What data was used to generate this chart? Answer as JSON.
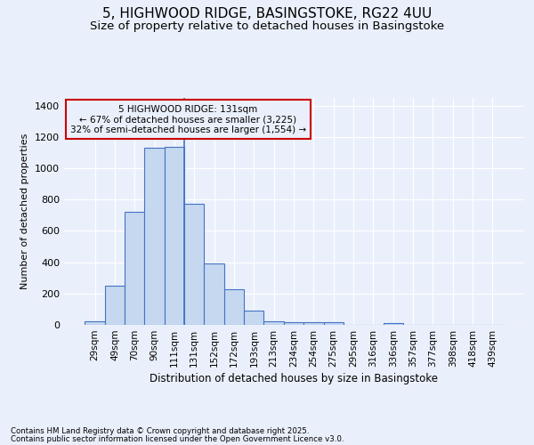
{
  "title1": "5, HIGHWOOD RIDGE, BASINGSTOKE, RG22 4UU",
  "title2": "Size of property relative to detached houses in Basingstoke",
  "xlabel": "Distribution of detached houses by size in Basingstoke",
  "ylabel": "Number of detached properties",
  "categories": [
    "29sqm",
    "49sqm",
    "70sqm",
    "90sqm",
    "111sqm",
    "131sqm",
    "152sqm",
    "172sqm",
    "193sqm",
    "213sqm",
    "234sqm",
    "254sqm",
    "275sqm",
    "295sqm",
    "316sqm",
    "336sqm",
    "357sqm",
    "377sqm",
    "398sqm",
    "418sqm",
    "439sqm"
  ],
  "values": [
    25,
    248,
    720,
    1130,
    1140,
    775,
    390,
    228,
    90,
    25,
    18,
    15,
    15,
    0,
    0,
    10,
    0,
    0,
    0,
    0,
    0
  ],
  "bar_color": "#c5d8f0",
  "bar_edge_color": "#4472c4",
  "annotation_text": "5 HIGHWOOD RIDGE: 131sqm\n← 67% of detached houses are smaller (3,225)\n32% of semi-detached houses are larger (1,554) →",
  "annotation_box_edge": "#cc0000",
  "footer1": "Contains HM Land Registry data © Crown copyright and database right 2025.",
  "footer2": "Contains public sector information licensed under the Open Government Licence v3.0.",
  "background_color": "#eaf0fb",
  "plot_bg_color": "#eaf0fb",
  "ylim": [
    0,
    1450
  ],
  "yticks": [
    0,
    200,
    400,
    600,
    800,
    1000,
    1200,
    1400
  ],
  "title1_fontsize": 11,
  "title2_fontsize": 9.5
}
